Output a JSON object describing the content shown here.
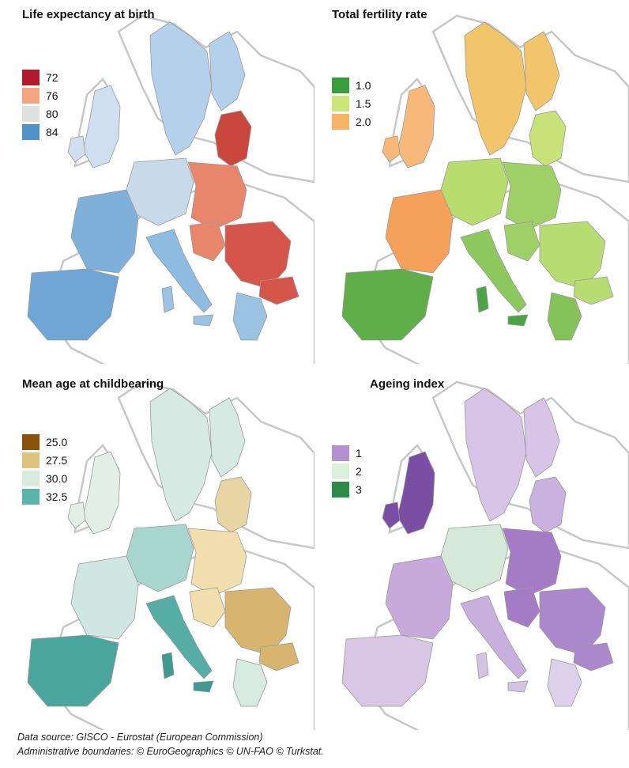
{
  "panels": [
    {
      "title": "Life expectancy at birth",
      "legend": [
        {
          "label": "72",
          "color": "#b2182b"
        },
        {
          "label": "76",
          "color": "#f4a582"
        },
        {
          "label": "80",
          "color": "#e0e0e0"
        },
        {
          "label": "84",
          "color": "#4f93c9"
        }
      ],
      "colors": {
        "west": "#7fb0da",
        "north": "#b5d0ea",
        "central": "#c8d9ea",
        "east": "#e7866a",
        "iberia": "#6fa6d5",
        "italy": "#8ebbe0",
        "balkans": "#d6554a",
        "baltic": "#c9473c",
        "uk": "#cfdfef",
        "greece": "#9cc2e3",
        "islands": "#9cc2e3"
      }
    },
    {
      "title": "Total fertility rate",
      "legend": [
        {
          "label": "1.0",
          "color": "#3a9c3a"
        },
        {
          "label": "1.5",
          "color": "#cde67a"
        },
        {
          "label": "2.0",
          "color": "#f9b366"
        }
      ],
      "colors": {
        "west": "#f5a15a",
        "north": "#f3c56b",
        "central": "#b9dc6f",
        "east": "#9fd067",
        "iberia": "#5fae4a",
        "italy": "#8cc85e",
        "balkans": "#b6dc72",
        "baltic": "#c8e27a",
        "uk": "#f7b87a",
        "greece": "#86c25a",
        "islands": "#4fa347"
      }
    },
    {
      "title": "Mean age at childbearing",
      "legend": [
        {
          "label": "25.0",
          "color": "#8c510a"
        },
        {
          "label": "27.5",
          "color": "#dfc27d"
        },
        {
          "label": "30.0",
          "color": "#d9ebdf"
        },
        {
          "label": "32.5",
          "color": "#5ab4ac"
        }
      ],
      "colors": {
        "west": "#cfe6e2",
        "north": "#d7e9e3",
        "central": "#a8d6cf",
        "east": "#f2dfb0",
        "iberia": "#4aa69c",
        "italy": "#55ada4",
        "balkans": "#d8b56f",
        "baltic": "#e8d5a4",
        "uk": "#e2efe6",
        "greece": "#d8ebe3",
        "islands": "#3f9b91"
      }
    },
    {
      "title": "Ageing index",
      "legend": [
        {
          "label": "1",
          "color": "#b291cf"
        },
        {
          "label": "2",
          "color": "#dcf0dc"
        },
        {
          "label": "3",
          "color": "#2b8b47"
        }
      ],
      "colors": {
        "west": "#c7a9dc",
        "north": "#d8c4e6",
        "central": "#d6e8d8",
        "east": "#a47cc6",
        "iberia": "#d8c6e4",
        "italy": "#c7b0dd",
        "balkans": "#ab88cb",
        "baltic": "#c9b2df",
        "uk": "#7a4fa3",
        "greece": "#ddd0ea",
        "islands": "#d5c3e3"
      }
    }
  ],
  "footer": {
    "line1": "Data source: GISCO - Eurostat (European Commission)",
    "line2": "Administrative boundaries: © EuroGeographics © UN-FAO © Turkstat."
  }
}
